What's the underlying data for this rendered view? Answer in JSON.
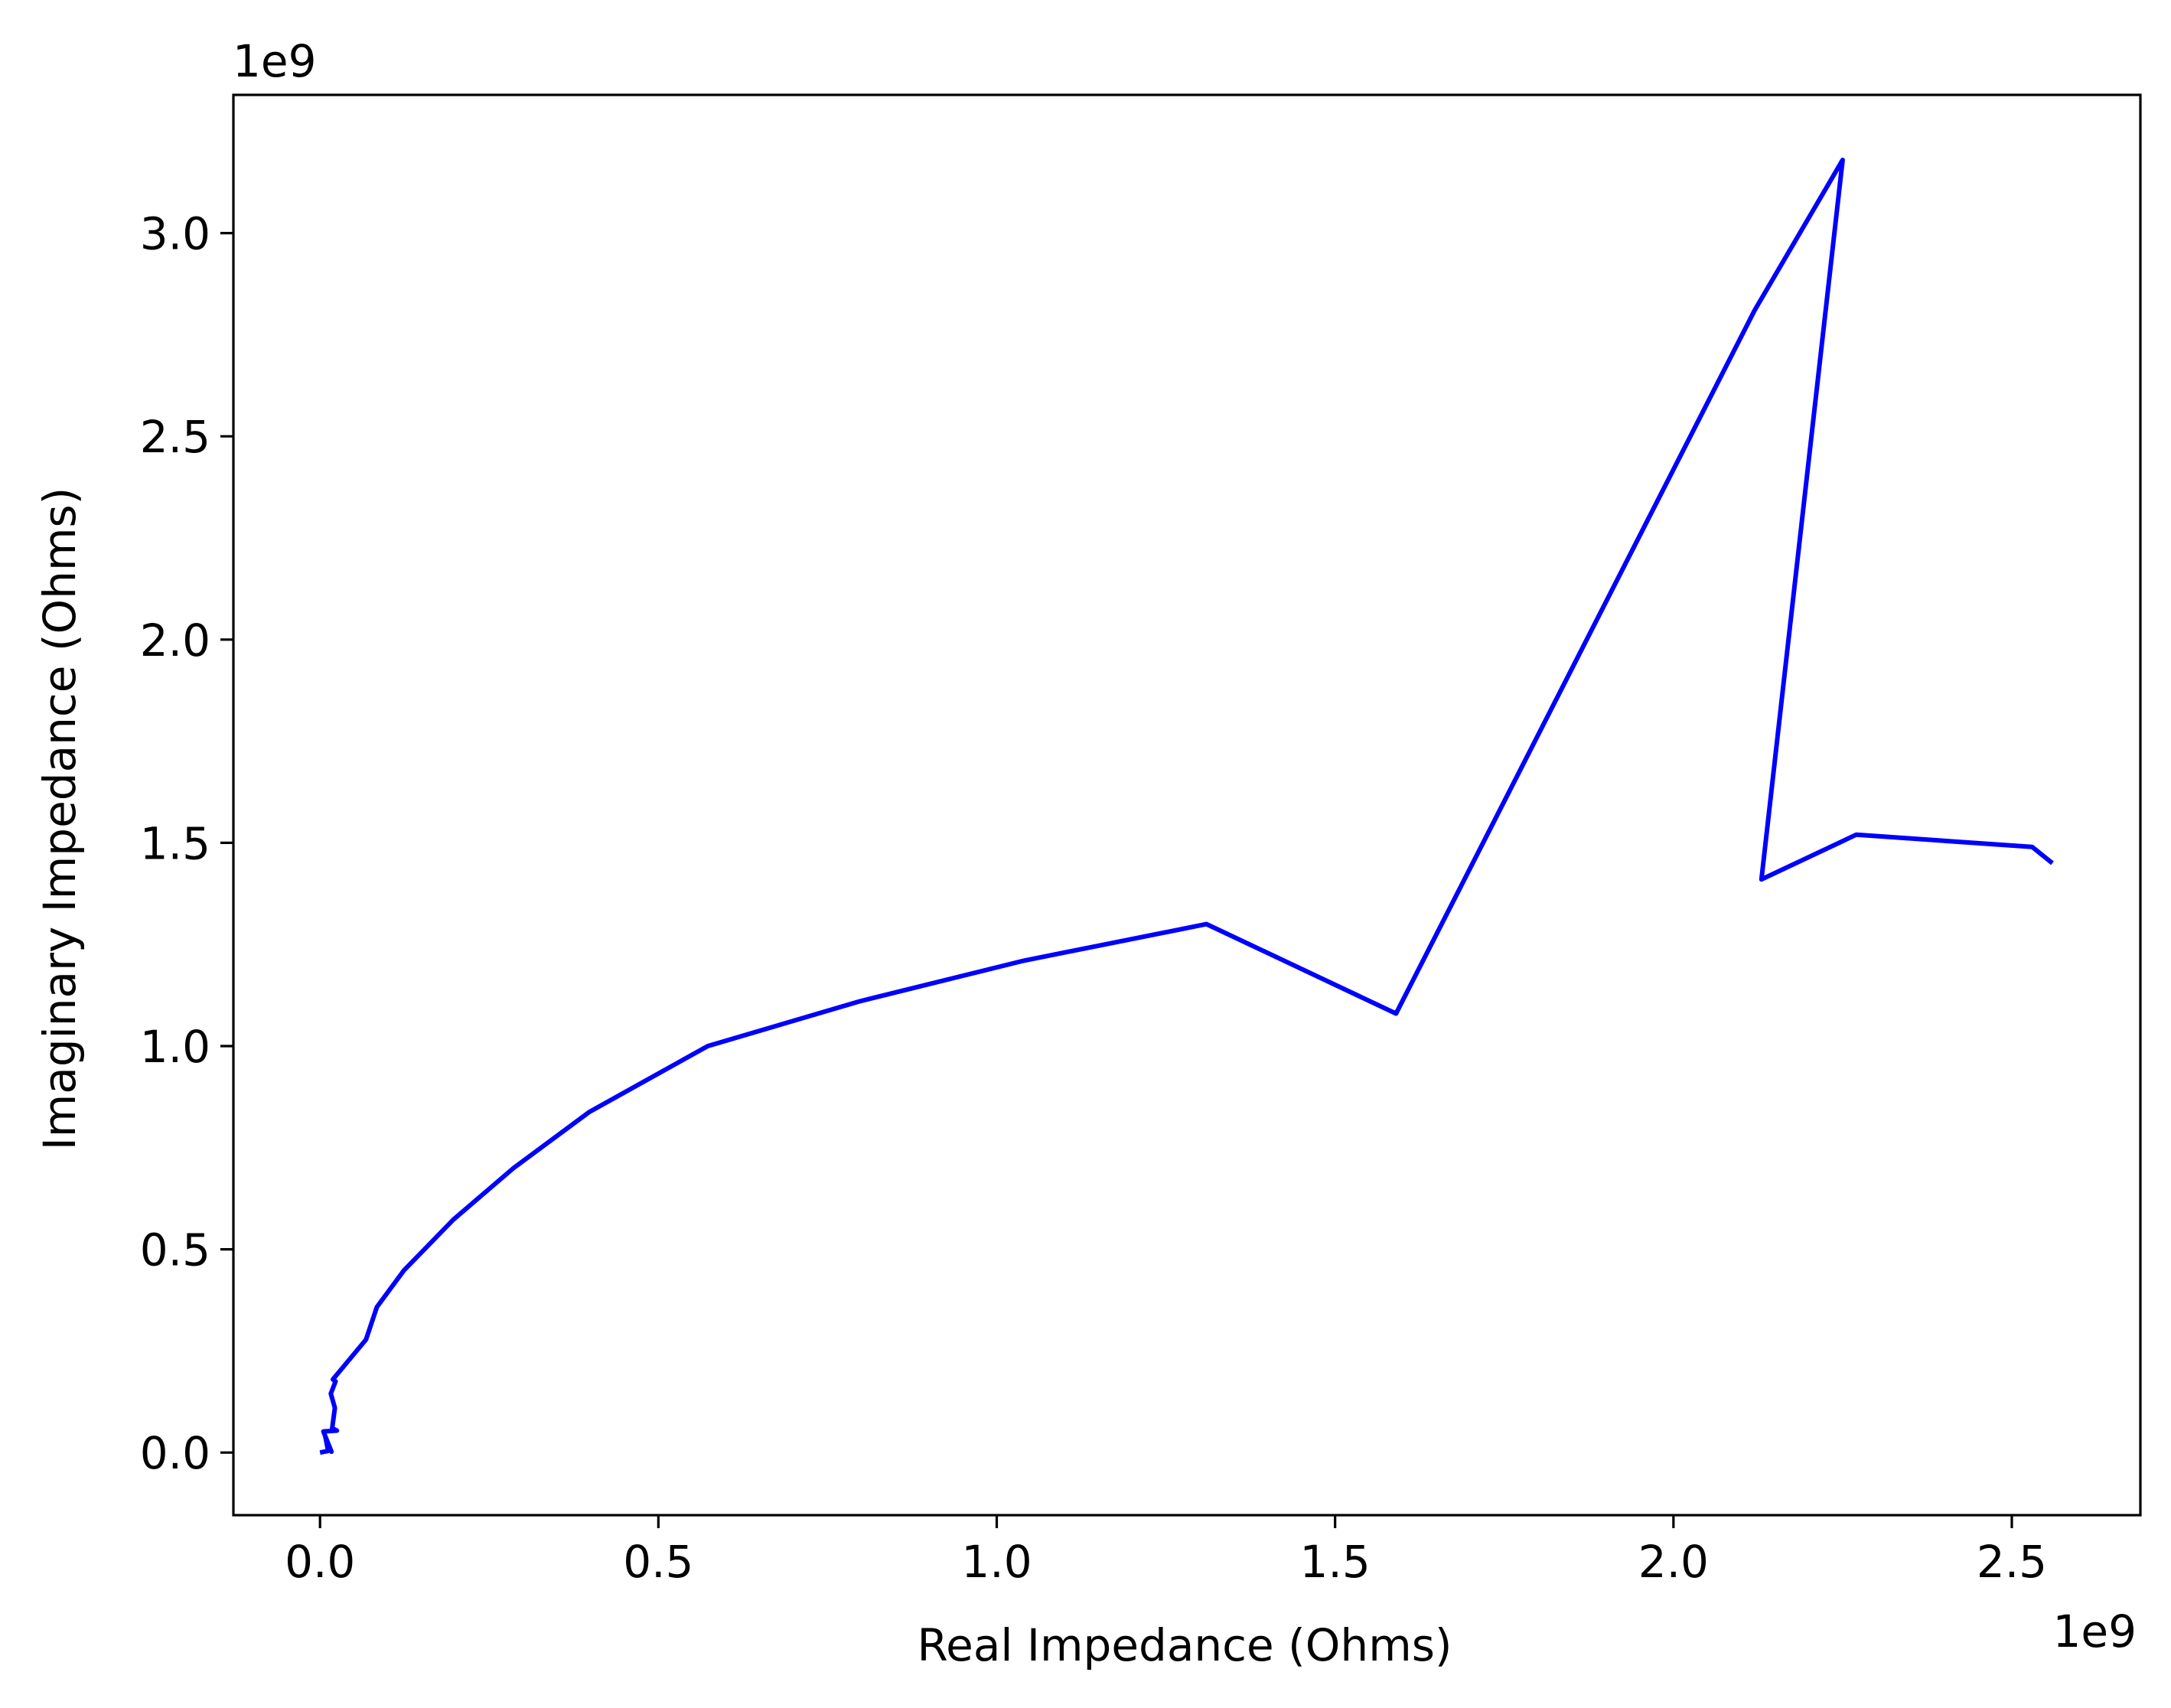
{
  "chart_data": {
    "type": "line",
    "title": "",
    "xlabel": "Real Impedance (Ohms)",
    "ylabel": "Imaginary Impedance (Ohms)",
    "x_offset_label": "1e9",
    "y_offset_label": "1e9",
    "xlim": [
      -0.128,
      2.69
    ],
    "ylim": [
      -0.154,
      3.34
    ],
    "x_ticks": [
      0.0,
      0.5,
      1.0,
      1.5,
      2.0,
      2.5
    ],
    "x_tick_labels": [
      "0.0",
      "0.5",
      "1.0",
      "1.5",
      "2.0",
      "2.5"
    ],
    "y_ticks": [
      0.0,
      0.5,
      1.0,
      1.5,
      2.0,
      2.5,
      3.0
    ],
    "y_tick_labels": [
      "0.0",
      "0.5",
      "1.0",
      "1.5",
      "2.0",
      "2.5",
      "3.0"
    ],
    "grid": false,
    "series": [
      {
        "color": "#0000ff",
        "x": [
          0.0,
          0.012,
          0.008,
          0.017,
          0.005,
          0.025,
          0.018,
          0.022,
          0.016,
          0.023,
          0.019,
          0.068,
          0.084,
          0.124,
          0.197,
          0.286,
          0.398,
          0.573,
          0.797,
          1.04,
          1.31,
          1.59,
          2.12,
          2.25,
          2.13,
          2.27,
          2.53,
          2.56
        ],
        "y": [
          0.0,
          0.004,
          0.038,
          0.002,
          0.052,
          0.054,
          0.06,
          0.11,
          0.145,
          0.175,
          0.18,
          0.278,
          0.358,
          0.448,
          0.573,
          0.7,
          0.838,
          1.0,
          1.11,
          1.21,
          1.3,
          1.08,
          2.81,
          3.18,
          1.41,
          1.52,
          1.49,
          1.45
        ]
      }
    ]
  }
}
